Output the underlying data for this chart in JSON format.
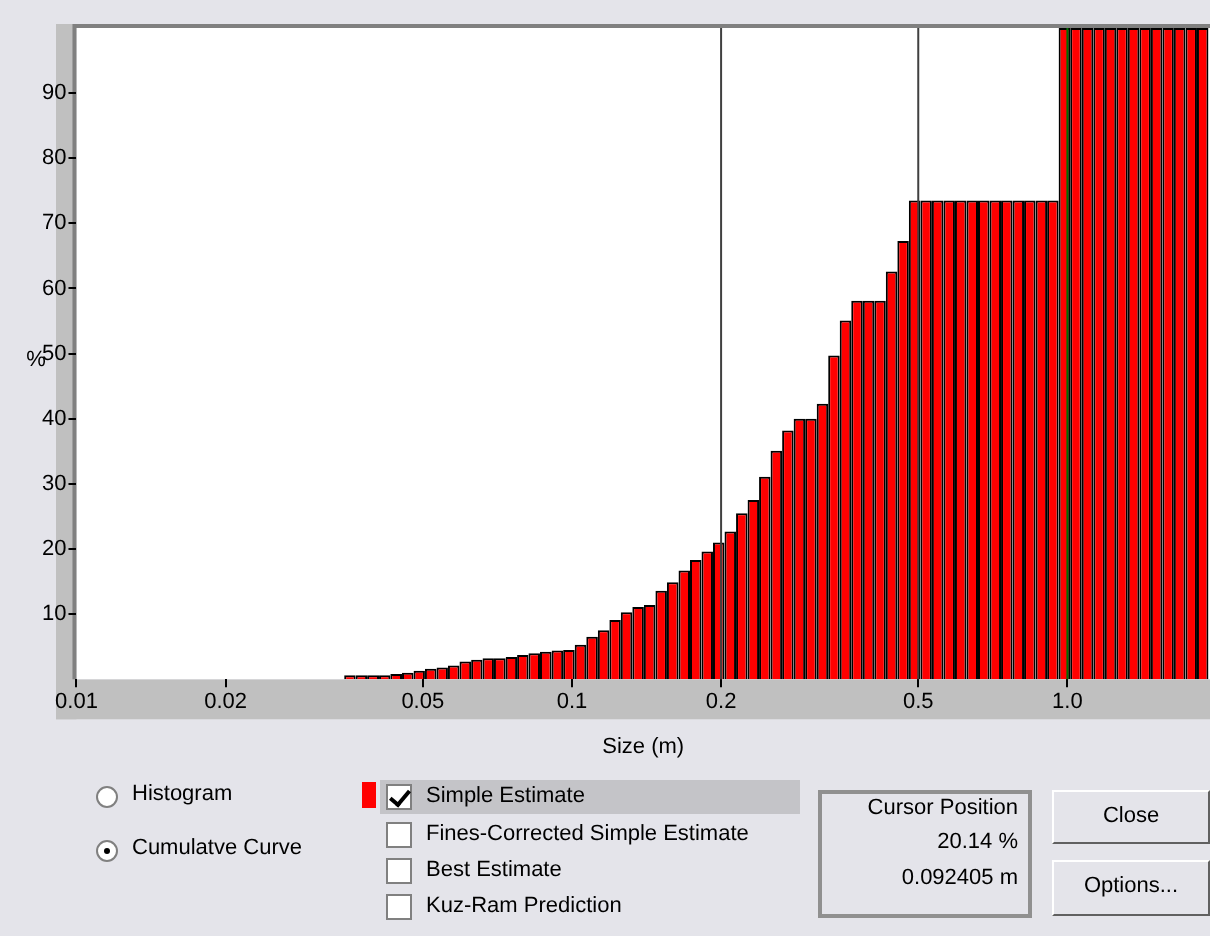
{
  "chart_data": {
    "type": "histogram",
    "xlabel": "Size (m)",
    "ylabel": "%",
    "bins": [
      0.0347,
      0.0366,
      0.0386,
      0.0408,
      0.043,
      0.0454,
      0.0479,
      0.0505,
      0.0533,
      0.0562,
      0.0593,
      0.0626,
      0.066,
      0.0696,
      0.0735,
      0.0775,
      0.0817,
      0.0862,
      0.091,
      0.096,
      0.1013,
      0.1069,
      0.1128,
      0.119,
      0.1255,
      0.1324,
      0.1397,
      0.1474,
      0.1555,
      0.1641,
      0.1731,
      0.1826,
      0.1926,
      0.2032,
      0.2144,
      0.2262,
      0.2386,
      0.2517,
      0.2656,
      0.2802,
      0.2956,
      0.3119,
      0.329,
      0.3471,
      0.3662,
      0.3864,
      0.4076,
      0.43,
      0.4537,
      0.4786,
      0.505,
      0.5327,
      0.562,
      0.593,
      0.6256,
      0.66,
      0.6963,
      0.7346,
      0.775,
      0.8175,
      0.8625,
      0.91,
      0.96,
      1.013,
      1.069,
      1.128,
      1.19,
      1.255,
      1.324,
      1.397,
      1.474,
      1.555,
      1.64,
      1.731,
      1.826,
      1.926
    ],
    "series": [
      {
        "name": "Simple Estimate",
        "color": "#ff0000",
        "values": [
          0.6,
          0.6,
          0.6,
          0.6,
          0.8,
          1.0,
          1.3,
          1.6,
          1.8,
          2.1,
          2.7,
          3.0,
          3.2,
          3.2,
          3.4,
          3.7,
          4.0,
          4.2,
          4.4,
          4.5,
          5.3,
          6.5,
          7.5,
          9.1,
          10.3,
          11.1,
          11.4,
          13.6,
          14.9,
          16.7,
          18.3,
          19.6,
          21.0,
          22.7,
          25.5,
          27.5,
          31.1,
          35.1,
          38.2,
          40.0,
          40.0,
          42.3,
          49.7,
          55.1,
          58.1,
          58.1,
          58.1,
          62.6,
          67.3,
          73.5,
          73.5,
          73.5,
          73.5,
          73.5,
          73.5,
          73.5,
          73.5,
          73.5,
          73.5,
          73.5,
          73.5,
          73.5,
          100,
          100,
          100,
          100,
          100,
          100,
          100,
          100,
          100,
          100,
          100,
          100,
          100
        ]
      }
    ],
    "log": "x",
    "xlim": [
      0.01,
      1.94
    ],
    "xticks": [
      0.01,
      0.02,
      0.05,
      0.1,
      0.2,
      0.5,
      {
        "value": 1,
        "label": "1.0"
      }
    ],
    "ylim": [
      0,
      100
    ],
    "yticks": [
      10,
      20,
      30,
      40,
      50,
      60,
      70,
      80,
      90
    ],
    "grid": false,
    "legend": "bottom",
    "ref_lines": [
      {
        "axis": "x",
        "value": 0.2,
        "color": "#404040"
      },
      {
        "axis": "x",
        "value": 0.5,
        "color": "#404040"
      },
      {
        "axis": "x",
        "value": 1,
        "color": "#007000"
      }
    ],
    "annotations": [
      "Histogram",
      "Cumulatve Curve",
      "Fines-Corrected Simple Estimate",
      "Best Estimate",
      "Kuz-Ram Prediction",
      "Cursor Position",
      "20.14 %",
      "0.092405 m",
      "Close",
      "Options..."
    ]
  }
}
